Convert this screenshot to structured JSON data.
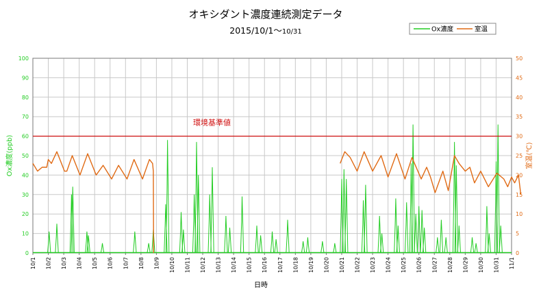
{
  "chart_data": {
    "type": "line",
    "title": "オキシダント濃度連続測定データ",
    "subtitle_main": "2015/10/1～",
    "subtitle_end": "10/31",
    "xlabel": "日時",
    "ylabel_left": "Ox濃度(ppb)",
    "ylabel_right": "室温(℃)",
    "ylim_left": [
      0,
      100
    ],
    "ylim_right": [
      0,
      50
    ],
    "yticks_left": [
      "0",
      "10",
      "20",
      "30",
      "40",
      "50",
      "60",
      "70",
      "80",
      "90",
      "100"
    ],
    "yticks_right": [
      "0",
      "5",
      "10",
      "15",
      "20",
      "25",
      "30",
      "35",
      "40",
      "45",
      "50"
    ],
    "categories": [
      "10/1",
      "10/2",
      "10/3",
      "10/4",
      "10/5",
      "10/6",
      "10/7",
      "10/8",
      "10/9",
      "10/10",
      "10/11",
      "10/12",
      "10/13",
      "10/14",
      "10/15",
      "10/16",
      "10/17",
      "10/18",
      "10/19",
      "10/20",
      "10/21",
      "10/22",
      "10/23",
      "10/24",
      "10/25",
      "10/26",
      "10/27",
      "10/28",
      "10/29",
      "10/30",
      "10/31",
      "11/1"
    ],
    "grid": true,
    "legend": {
      "position": "top-right",
      "items": [
        "Ox濃度",
        "室温"
      ]
    },
    "reference_line": {
      "label": "環境基準値",
      "value": 60,
      "axis": "left"
    },
    "colors": {
      "ox": "#22cc22",
      "temp": "#e06a14",
      "ref": "#d01010",
      "grid": "#c8c8c8"
    },
    "series": [
      {
        "name": "Ox濃度",
        "axis": "left",
        "baseline": 0,
        "peaks": [
          {
            "day": 1.05,
            "value": 11
          },
          {
            "day": 1.55,
            "value": 15
          },
          {
            "day": 2.5,
            "value": 30
          },
          {
            "day": 2.58,
            "value": 34
          },
          {
            "day": 3.5,
            "value": 11
          },
          {
            "day": 3.6,
            "value": 9
          },
          {
            "day": 4.5,
            "value": 5
          },
          {
            "day": 6.6,
            "value": 11
          },
          {
            "day": 7.5,
            "value": 5
          },
          {
            "day": 7.8,
            "value": 12
          },
          {
            "day": 8.6,
            "value": 25
          },
          {
            "day": 8.72,
            "value": 58
          },
          {
            "day": 9.6,
            "value": 21
          },
          {
            "day": 9.75,
            "value": 12
          },
          {
            "day": 10.45,
            "value": 30
          },
          {
            "day": 10.6,
            "value": 57
          },
          {
            "day": 10.72,
            "value": 40
          },
          {
            "day": 11.45,
            "value": 30
          },
          {
            "day": 11.62,
            "value": 44
          },
          {
            "day": 12.5,
            "value": 19
          },
          {
            "day": 12.75,
            "value": 13
          },
          {
            "day": 13.55,
            "value": 29
          },
          {
            "day": 14.5,
            "value": 14
          },
          {
            "day": 14.75,
            "value": 9
          },
          {
            "day": 15.5,
            "value": 11
          },
          {
            "day": 15.75,
            "value": 7
          },
          {
            "day": 16.5,
            "value": 17
          },
          {
            "day": 17.5,
            "value": 6
          },
          {
            "day": 17.8,
            "value": 8
          },
          {
            "day": 18.75,
            "value": 6
          },
          {
            "day": 19.55,
            "value": 5
          },
          {
            "day": 20.0,
            "value": 38
          },
          {
            "day": 20.15,
            "value": 43
          },
          {
            "day": 20.3,
            "value": 38
          },
          {
            "day": 21.4,
            "value": 27
          },
          {
            "day": 21.55,
            "value": 35
          },
          {
            "day": 22.45,
            "value": 19
          },
          {
            "day": 22.6,
            "value": 10
          },
          {
            "day": 23.5,
            "value": 28
          },
          {
            "day": 23.65,
            "value": 14
          },
          {
            "day": 24.2,
            "value": 26
          },
          {
            "day": 24.5,
            "value": 46
          },
          {
            "day": 24.62,
            "value": 66
          },
          {
            "day": 24.8,
            "value": 20
          },
          {
            "day": 25.0,
            "value": 24
          },
          {
            "day": 25.2,
            "value": 22
          },
          {
            "day": 25.35,
            "value": 13
          },
          {
            "day": 26.2,
            "value": 8
          },
          {
            "day": 26.45,
            "value": 17
          },
          {
            "day": 26.75,
            "value": 8
          },
          {
            "day": 27.3,
            "value": 57
          },
          {
            "day": 27.42,
            "value": 45
          },
          {
            "day": 27.6,
            "value": 14
          },
          {
            "day": 28.45,
            "value": 8
          },
          {
            "day": 28.7,
            "value": 5
          },
          {
            "day": 29.4,
            "value": 24
          },
          {
            "day": 29.55,
            "value": 10
          },
          {
            "day": 30.0,
            "value": 47
          },
          {
            "day": 30.12,
            "value": 66
          },
          {
            "day": 30.3,
            "value": 14
          }
        ]
      },
      {
        "name": "室温",
        "axis": "right",
        "segments": [
          [
            {
              "day": 0.0,
              "value": 23
            },
            {
              "day": 0.3,
              "value": 21
            },
            {
              "day": 0.6,
              "value": 22
            },
            {
              "day": 0.9,
              "value": 22
            },
            {
              "day": 1.0,
              "value": 24
            },
            {
              "day": 1.2,
              "value": 23
            },
            {
              "day": 1.55,
              "value": 26
            },
            {
              "day": 2.05,
              "value": 21
            },
            {
              "day": 2.2,
              "value": 21
            },
            {
              "day": 2.55,
              "value": 25
            },
            {
              "day": 3.05,
              "value": 20
            },
            {
              "day": 3.55,
              "value": 25.5
            },
            {
              "day": 4.1,
              "value": 20
            },
            {
              "day": 4.55,
              "value": 22.5
            },
            {
              "day": 5.1,
              "value": 19
            },
            {
              "day": 5.55,
              "value": 22.5
            },
            {
              "day": 6.1,
              "value": 19
            },
            {
              "day": 6.55,
              "value": 24
            },
            {
              "day": 7.1,
              "value": 19
            },
            {
              "day": 7.55,
              "value": 24
            },
            {
              "day": 7.75,
              "value": 23
            },
            {
              "day": 7.8,
              "value": 21
            },
            {
              "day": 7.82,
              "value": 0
            }
          ],
          [
            {
              "day": 19.9,
              "value": 23
            },
            {
              "day": 20.2,
              "value": 26
            },
            {
              "day": 20.55,
              "value": 24.5
            },
            {
              "day": 21.0,
              "value": 21
            },
            {
              "day": 21.45,
              "value": 26
            },
            {
              "day": 22.0,
              "value": 21
            },
            {
              "day": 22.55,
              "value": 25
            },
            {
              "day": 23.0,
              "value": 19.5
            },
            {
              "day": 23.55,
              "value": 25.5
            },
            {
              "day": 24.1,
              "value": 19
            },
            {
              "day": 24.55,
              "value": 24.5
            },
            {
              "day": 25.15,
              "value": 19
            },
            {
              "day": 25.5,
              "value": 22
            },
            {
              "day": 25.75,
              "value": 19.5
            },
            {
              "day": 26.05,
              "value": 15.5
            },
            {
              "day": 26.55,
              "value": 21
            },
            {
              "day": 26.9,
              "value": 16
            },
            {
              "day": 27.3,
              "value": 25
            },
            {
              "day": 27.6,
              "value": 23
            },
            {
              "day": 28.0,
              "value": 21
            },
            {
              "day": 28.3,
              "value": 22
            },
            {
              "day": 28.6,
              "value": 18
            },
            {
              "day": 29.0,
              "value": 21
            },
            {
              "day": 29.5,
              "value": 17
            },
            {
              "day": 30.05,
              "value": 20.5
            },
            {
              "day": 30.5,
              "value": 19
            },
            {
              "day": 30.75,
              "value": 17
            },
            {
              "day": 31.0,
              "value": 19.5
            },
            {
              "day": 31.2,
              "value": 18
            },
            {
              "day": 31.45,
              "value": 20
            },
            {
              "day": 31.6,
              "value": 15
            }
          ]
        ]
      }
    ]
  }
}
